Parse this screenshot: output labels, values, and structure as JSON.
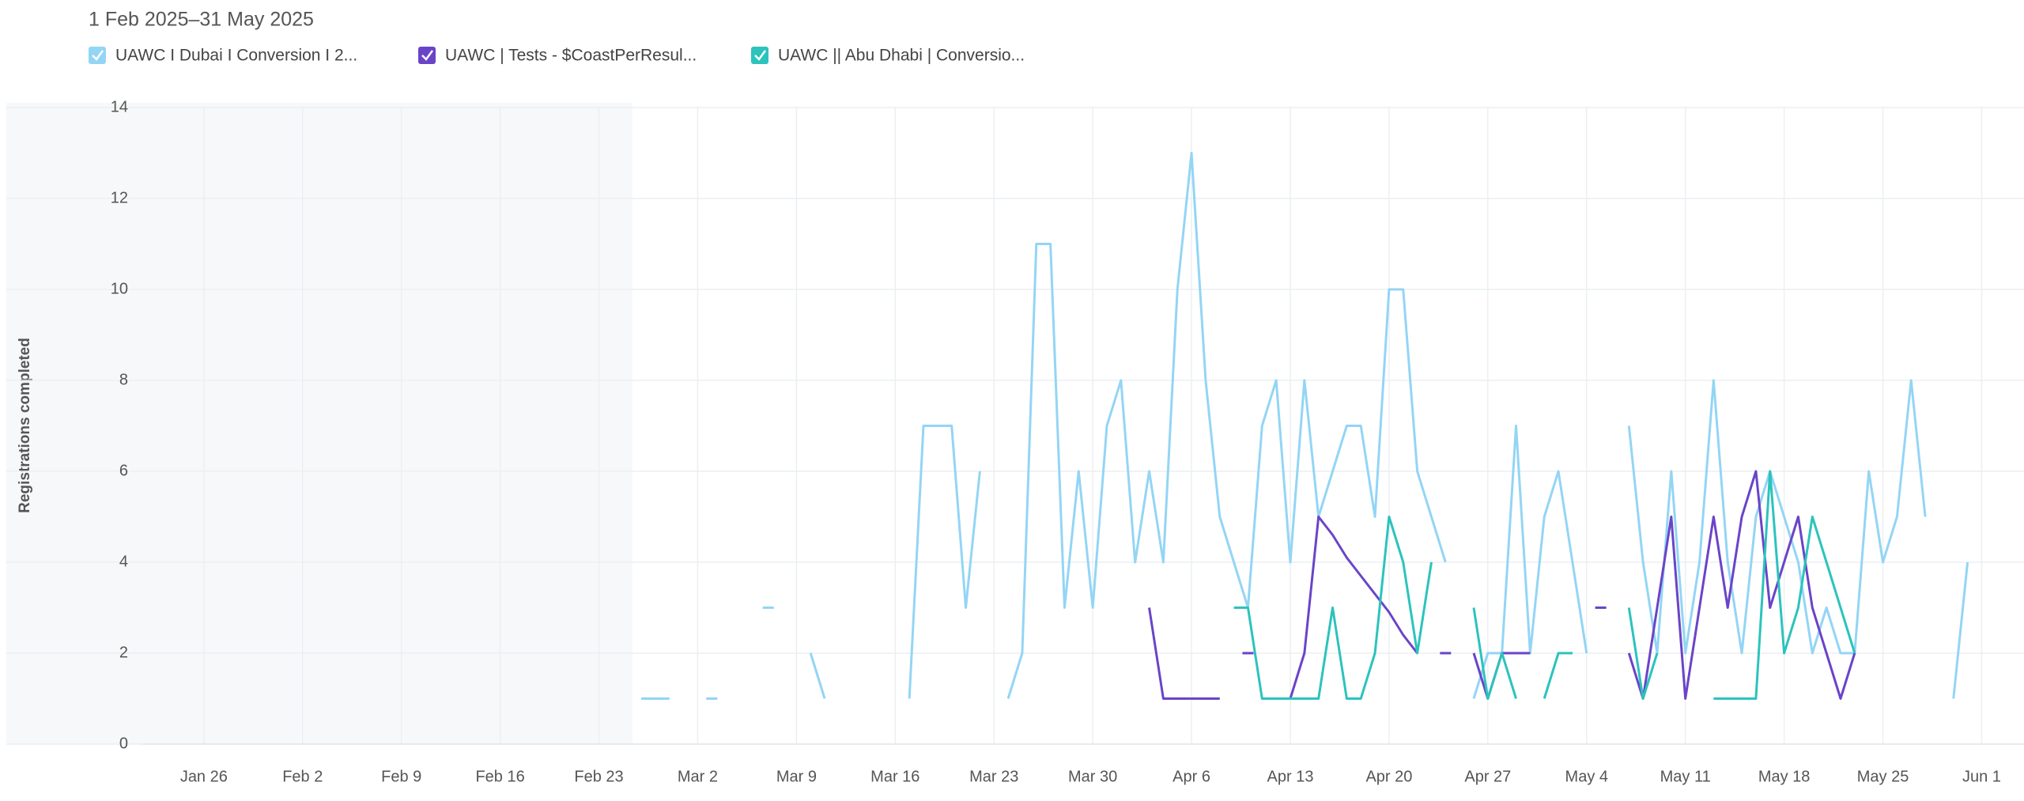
{
  "chart_data": {
    "type": "line",
    "subtitle": "1 Feb 2025–31 May 2025",
    "y_label": "Registrations completed",
    "x": [
      "2025-02-26",
      "2025-02-27",
      "2025-02-28",
      "2025-03-01",
      "2025-03-02",
      "2025-03-03",
      "2025-03-04",
      "2025-03-05",
      "2025-03-06",
      "2025-03-07",
      "2025-03-08",
      "2025-03-09",
      "2025-03-10",
      "2025-03-11",
      "2025-03-12",
      "2025-03-13",
      "2025-03-14",
      "2025-03-15",
      "2025-03-16",
      "2025-03-17",
      "2025-03-18",
      "2025-03-19",
      "2025-03-20",
      "2025-03-21",
      "2025-03-22",
      "2025-03-23",
      "2025-03-24",
      "2025-03-25",
      "2025-03-26",
      "2025-03-27",
      "2025-03-28",
      "2025-03-29",
      "2025-03-30",
      "2025-03-31",
      "2025-04-01",
      "2025-04-02",
      "2025-04-03",
      "2025-04-04",
      "2025-04-05",
      "2025-04-06",
      "2025-04-07",
      "2025-04-08",
      "2025-04-09",
      "2025-04-10",
      "2025-04-11",
      "2025-04-12",
      "2025-04-13",
      "2025-04-14",
      "2025-04-15",
      "2025-04-16",
      "2025-04-17",
      "2025-04-18",
      "2025-04-19",
      "2025-04-20",
      "2025-04-21",
      "2025-04-22",
      "2025-04-23",
      "2025-04-24",
      "2025-04-25",
      "2025-04-26",
      "2025-04-27",
      "2025-04-28",
      "2025-04-29",
      "2025-04-30",
      "2025-05-01",
      "2025-05-02",
      "2025-05-03",
      "2025-05-04",
      "2025-05-05",
      "2025-05-06",
      "2025-05-07",
      "2025-05-08",
      "2025-05-09",
      "2025-05-10",
      "2025-05-11",
      "2025-05-12",
      "2025-05-13",
      "2025-05-14",
      "2025-05-15",
      "2025-05-16",
      "2025-05-17",
      "2025-05-18",
      "2025-05-19",
      "2025-05-20",
      "2025-05-21",
      "2025-05-22",
      "2025-05-23",
      "2025-05-24",
      "2025-05-25",
      "2025-05-26",
      "2025-05-27",
      "2025-05-28",
      "2025-05-29",
      "2025-05-30",
      "2025-05-31"
    ],
    "series": [
      {
        "name": "UAWC I Dubai I Conversion I 2...",
        "color": "#93d5f5",
        "values": [
          1,
          1,
          1,
          null,
          null,
          1,
          null,
          null,
          null,
          3,
          null,
          null,
          2,
          1,
          null,
          null,
          null,
          null,
          null,
          1,
          7,
          7,
          7,
          3,
          6,
          null,
          1,
          2,
          11,
          11,
          3,
          6,
          3,
          7,
          8,
          4,
          6,
          4,
          10,
          13,
          8,
          5,
          4,
          3,
          7,
          8,
          4,
          8,
          5,
          6,
          7,
          7,
          5,
          10,
          10,
          6,
          5,
          4,
          null,
          1,
          2,
          2,
          7,
          2,
          5,
          6,
          4,
          2,
          null,
          null,
          7,
          4,
          2,
          6,
          2,
          4,
          8,
          4,
          2,
          5,
          6,
          5,
          4,
          2,
          3,
          2,
          2,
          6,
          4,
          5,
          8,
          5,
          null,
          1,
          4
        ]
      },
      {
        "name": "UAWC | Tests - $CoastPerResul...",
        "color": "#6a44c8",
        "values": [
          null,
          null,
          null,
          null,
          null,
          null,
          null,
          null,
          null,
          null,
          null,
          null,
          null,
          null,
          null,
          null,
          null,
          null,
          null,
          null,
          null,
          null,
          null,
          null,
          null,
          null,
          null,
          null,
          null,
          null,
          null,
          null,
          null,
          null,
          null,
          null,
          3,
          1,
          1,
          1,
          1,
          1,
          null,
          2,
          null,
          1,
          1,
          2,
          5,
          4.6,
          4.1,
          3.7,
          3.3,
          2.9,
          2.4,
          2,
          null,
          2,
          null,
          2,
          1,
          2,
          2,
          2,
          null,
          2,
          2,
          null,
          3,
          null,
          2,
          1,
          3,
          5,
          1,
          3,
          5,
          3,
          5,
          6,
          3,
          4,
          5,
          3,
          2,
          1,
          2,
          null,
          null,
          null,
          null,
          null,
          null,
          null,
          null
        ]
      },
      {
        "name": "UAWC || Abu Dhabi | Conversio...",
        "color": "#2cc3bd",
        "values": [
          null,
          null,
          null,
          null,
          null,
          null,
          null,
          null,
          null,
          null,
          null,
          null,
          null,
          null,
          null,
          null,
          null,
          null,
          null,
          null,
          null,
          null,
          null,
          null,
          null,
          null,
          null,
          null,
          null,
          null,
          null,
          null,
          null,
          null,
          null,
          null,
          null,
          null,
          null,
          null,
          null,
          null,
          3,
          3,
          1,
          1,
          1,
          1,
          1,
          3,
          1,
          1,
          2,
          5,
          4,
          2,
          4,
          null,
          null,
          3,
          1,
          2,
          1,
          null,
          1,
          2,
          2,
          null,
          null,
          null,
          3,
          1,
          2,
          null,
          null,
          null,
          1,
          1,
          1,
          1,
          6,
          2,
          3,
          5,
          4,
          3,
          2,
          null,
          null,
          null,
          null,
          null,
          null,
          null,
          null
        ]
      }
    ],
    "xlim": [
      "2025-01-12",
      "2025-06-04"
    ],
    "xticks": [
      {
        "value": "2025-01-26",
        "label": "Jan 26"
      },
      {
        "value": "2025-02-02",
        "label": "Feb 2"
      },
      {
        "value": "2025-02-09",
        "label": "Feb 9"
      },
      {
        "value": "2025-02-16",
        "label": "Feb 16"
      },
      {
        "value": "2025-02-23",
        "label": "Feb 23"
      },
      {
        "value": "2025-03-02",
        "label": "Mar 2"
      },
      {
        "value": "2025-03-09",
        "label": "Mar 9"
      },
      {
        "value": "2025-03-16",
        "label": "Mar 16"
      },
      {
        "value": "2025-03-23",
        "label": "Mar 23"
      },
      {
        "value": "2025-03-30",
        "label": "Mar 30"
      },
      {
        "value": "2025-04-06",
        "label": "Apr 6"
      },
      {
        "value": "2025-04-13",
        "label": "Apr 13"
      },
      {
        "value": "2025-04-20",
        "label": "Apr 20"
      },
      {
        "value": "2025-04-27",
        "label": "Apr 27"
      },
      {
        "value": "2025-05-04",
        "label": "May 4"
      },
      {
        "value": "2025-05-11",
        "label": "May 11"
      },
      {
        "value": "2025-05-18",
        "label": "May 18"
      },
      {
        "value": "2025-05-25",
        "label": "May 25"
      },
      {
        "value": "2025-06-01",
        "label": "Jun 1"
      }
    ],
    "ylim": [
      0,
      14
    ],
    "yticks": [
      0,
      2,
      4,
      6,
      8,
      10,
      12,
      14
    ],
    "grid": true
  }
}
